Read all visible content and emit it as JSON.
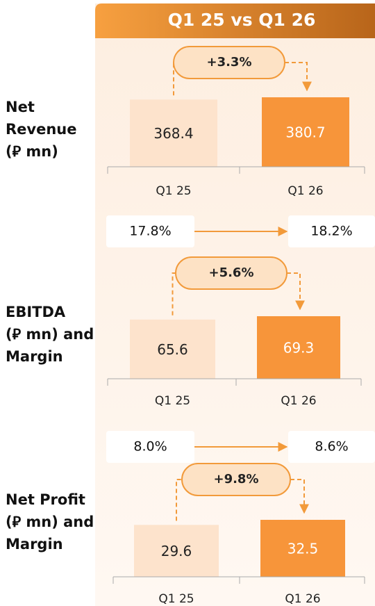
{
  "header": "Q1 25 vs Q1 26",
  "chart_data": [
    {
      "type": "bar",
      "title": [
        "Net",
        "Revenue",
        "(⃁ mn)"
      ],
      "categories": [
        "Q1 25",
        "Q1 26"
      ],
      "values": [
        368.4,
        380.7
      ],
      "colors": [
        "#fde3cc",
        "#f7953a"
      ],
      "change": {
        "value": 3.3,
        "label": "+3.3%"
      }
    },
    {
      "type": "bar",
      "title": [
        "EBITDA",
        "(⃁ mn) and",
        "Margin"
      ],
      "categories": [
        "Q1 25",
        "Q1 26"
      ],
      "values": [
        65.6,
        69.3
      ],
      "colors": [
        "#fde3cc",
        "#f7953a"
      ],
      "change": {
        "value": 5.6,
        "label": "+5.6%"
      },
      "margins": {
        "values": [
          17.8,
          18.2
        ],
        "value_labels": [
          "17.8%",
          "18.2%"
        ]
      }
    },
    {
      "type": "bar",
      "title": [
        "Net Profit",
        "(⃁ mn) and",
        "Margin"
      ],
      "categories": [
        "Q1 25",
        "Q1 26"
      ],
      "values": [
        29.6,
        32.5
      ],
      "colors": [
        "#fde3cc",
        "#f7953a"
      ],
      "change": {
        "value": 9.8,
        "label": "+9.8%"
      },
      "margins": {
        "values": [
          8.0,
          8.6
        ],
        "value_labels": [
          "8.0%",
          "8.6%"
        ]
      }
    }
  ]
}
